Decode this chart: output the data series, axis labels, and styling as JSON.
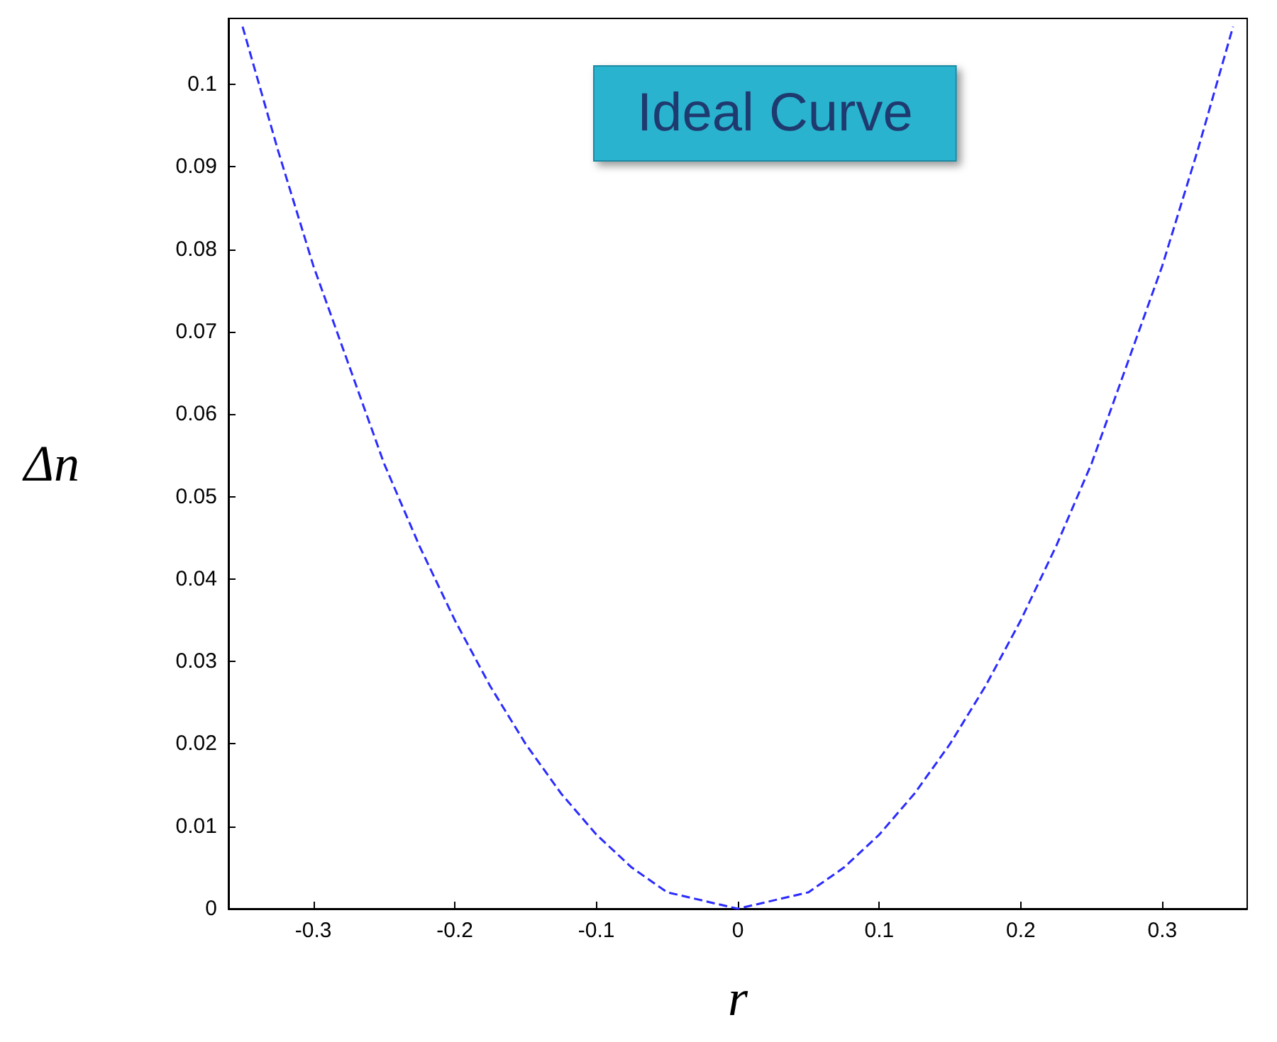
{
  "chart_data": {
    "type": "line",
    "xlabel": "r",
    "ylabel": "Δn",
    "annotations": [
      "Ideal Curve"
    ],
    "x": [
      -0.35,
      -0.325,
      -0.3,
      -0.275,
      -0.25,
      -0.225,
      -0.2,
      -0.175,
      -0.15,
      -0.125,
      -0.1,
      -0.075,
      -0.05,
      -0.025,
      0,
      0.025,
      0.05,
      0.075,
      0.1,
      0.125,
      0.15,
      0.175,
      0.2,
      0.225,
      0.25,
      0.275,
      0.3,
      0.325,
      0.35
    ],
    "series": [
      {
        "color": "#2b2bff",
        "values": [
          0.107,
          0.092,
          0.078,
          0.066,
          0.054,
          0.044,
          0.035,
          0.027,
          0.02,
          0.014,
          0.009,
          0.005,
          0.002,
          0.001,
          0,
          0.001,
          0.002,
          0.005,
          0.009,
          0.014,
          0.02,
          0.027,
          0.035,
          0.044,
          0.054,
          0.066,
          0.078,
          0.092,
          0.107
        ]
      }
    ],
    "xlim": [
      -0.36,
      0.36
    ],
    "xticks": [
      -0.3,
      -0.2,
      -0.1,
      0,
      0.1,
      0.2,
      0.3
    ],
    "ylim": [
      0,
      0.108
    ],
    "yticks": [
      0,
      0.01,
      0.02,
      0.03,
      0.04,
      0.05,
      0.06,
      0.07,
      0.08,
      0.09,
      0.1
    ],
    "grid": false,
    "marker": "none",
    "line_style": "dashed"
  }
}
